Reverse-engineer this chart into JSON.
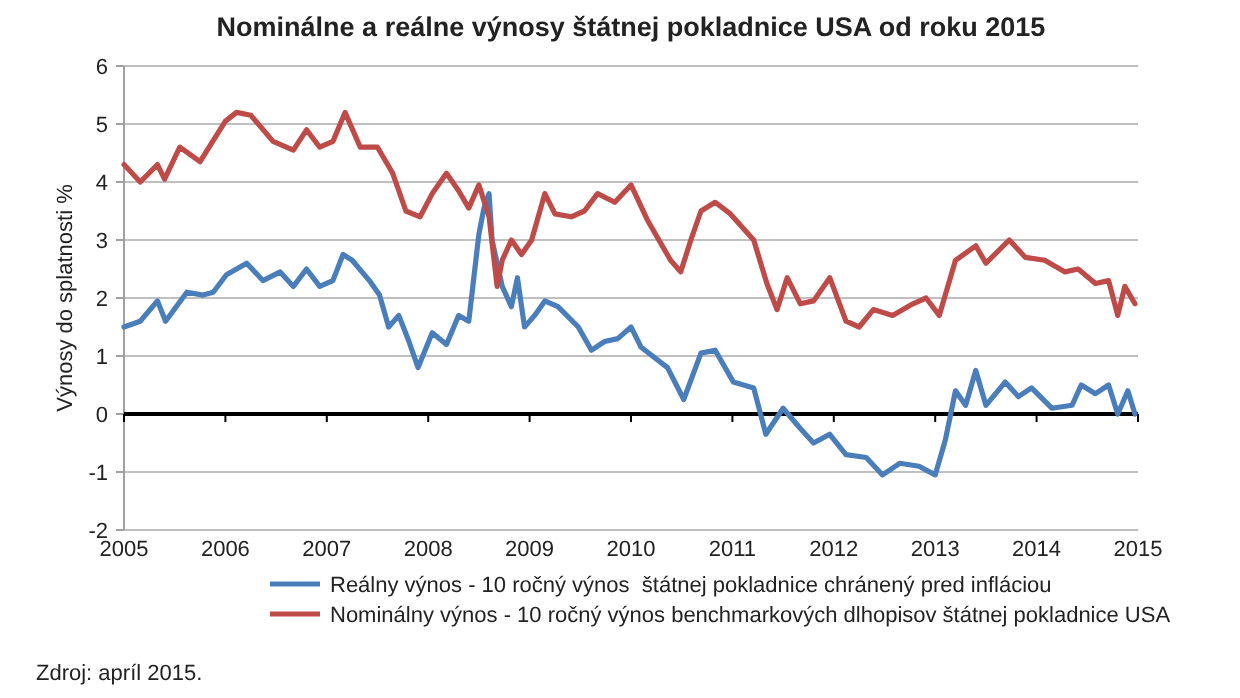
{
  "chart_data": {
    "type": "line",
    "title": "Nominálne a reálne výnosy štátnej pokladnice USA od roku 2015",
    "ylabel": "Výnosy do splatnosti %",
    "annotations": [
      "Zdroj: apríl 2015."
    ],
    "xlim": [
      2005,
      2015
    ],
    "xticks": [
      2005,
      2006,
      2007,
      2008,
      2009,
      2010,
      2011,
      2012,
      2013,
      2014,
      2015
    ],
    "ylim": [
      -2,
      6
    ],
    "yticks": [
      -2,
      -1,
      0,
      1,
      2,
      3,
      4,
      5,
      6
    ],
    "grid": "y",
    "legend": "bottom",
    "marker": "none",
    "line_style": "solid",
    "series": [
      {
        "name": "Reálny výnos - 10 ročný výnos  štátnej pokladnice chránený pred infláciou",
        "color": "#4a7ebb",
        "x": [
          2005.0,
          2005.16,
          2005.33,
          2005.41,
          2005.62,
          2005.78,
          2005.88,
          2006.01,
          2006.21,
          2006.37,
          2006.54,
          2006.67,
          2006.8,
          2006.93,
          2007.06,
          2007.16,
          2007.25,
          2007.42,
          2007.52,
          2007.61,
          2007.71,
          2007.81,
          2007.9,
          2008.04,
          2008.18,
          2008.3,
          2008.4,
          2008.44,
          2008.5,
          2008.55,
          2008.6,
          2008.63,
          2008.73,
          2008.82,
          2008.88,
          2008.95,
          2009.05,
          2009.15,
          2009.28,
          2009.48,
          2009.61,
          2009.74,
          2009.87,
          2010.0,
          2010.1,
          2010.36,
          2010.52,
          2010.69,
          2010.83,
          2011.01,
          2011.21,
          2011.33,
          2011.5,
          2011.67,
          2011.8,
          2011.96,
          2012.12,
          2012.32,
          2012.48,
          2012.65,
          2012.84,
          2013.0,
          2013.1,
          2013.2,
          2013.3,
          2013.4,
          2013.5,
          2013.69,
          2013.82,
          2013.95,
          2014.15,
          2014.35,
          2014.44,
          2014.58,
          2014.71,
          2014.8,
          2014.9,
          2014.97
        ],
        "values": [
          1.5,
          1.6,
          1.95,
          1.6,
          2.1,
          2.05,
          2.1,
          2.4,
          2.6,
          2.3,
          2.45,
          2.2,
          2.5,
          2.2,
          2.3,
          2.75,
          2.65,
          2.3,
          2.05,
          1.5,
          1.7,
          1.25,
          0.8,
          1.4,
          1.2,
          1.7,
          1.6,
          2.2,
          3.1,
          3.55,
          3.8,
          3.0,
          2.2,
          1.85,
          2.35,
          1.5,
          1.7,
          1.95,
          1.85,
          1.5,
          1.1,
          1.25,
          1.3,
          1.5,
          1.15,
          0.8,
          0.25,
          1.05,
          1.1,
          0.55,
          0.45,
          -0.35,
          0.1,
          -0.25,
          -0.5,
          -0.35,
          -0.7,
          -0.75,
          -1.05,
          -0.85,
          -0.9,
          -1.05,
          -0.45,
          0.4,
          0.15,
          0.75,
          0.15,
          0.55,
          0.3,
          0.45,
          0.1,
          0.15,
          0.5,
          0.35,
          0.5,
          0.0,
          0.4,
          0.0
        ]
      },
      {
        "name": "Nominálny výnos - 10 ročný výnos benchmarkových dlhopisov štátnej pokladnice USA",
        "color": "#be4b48",
        "x": [
          2005.0,
          2005.16,
          2005.33,
          2005.4,
          2005.55,
          2005.75,
          2006.0,
          2006.11,
          2006.25,
          2006.47,
          2006.67,
          2006.8,
          2006.93,
          2007.06,
          2007.18,
          2007.33,
          2007.5,
          2007.65,
          2007.78,
          2007.92,
          2008.04,
          2008.18,
          2008.3,
          2008.4,
          2008.5,
          2008.6,
          2008.68,
          2008.73,
          2008.82,
          2008.92,
          2009.02,
          2009.15,
          2009.25,
          2009.41,
          2009.54,
          2009.67,
          2009.84,
          2010.0,
          2010.16,
          2010.39,
          2010.49,
          2010.59,
          2010.69,
          2010.83,
          2010.98,
          2011.21,
          2011.34,
          2011.44,
          2011.54,
          2011.67,
          2011.8,
          2011.96,
          2012.12,
          2012.25,
          2012.39,
          2012.58,
          2012.78,
          2012.91,
          2013.04,
          2013.2,
          2013.4,
          2013.5,
          2013.73,
          2013.89,
          2014.08,
          2014.28,
          2014.41,
          2014.58,
          2014.71,
          2014.8,
          2014.87,
          2014.97
        ],
        "values": [
          4.3,
          4.0,
          4.3,
          4.05,
          4.6,
          4.35,
          5.05,
          5.2,
          5.15,
          4.7,
          4.55,
          4.9,
          4.6,
          4.7,
          5.2,
          4.6,
          4.6,
          4.15,
          3.5,
          3.4,
          3.8,
          4.15,
          3.85,
          3.55,
          3.95,
          3.4,
          2.2,
          2.65,
          3.0,
          2.75,
          3.0,
          3.8,
          3.45,
          3.4,
          3.5,
          3.8,
          3.65,
          3.95,
          3.35,
          2.65,
          2.45,
          3.0,
          3.5,
          3.65,
          3.45,
          3.0,
          2.25,
          1.8,
          2.35,
          1.9,
          1.95,
          2.35,
          1.6,
          1.5,
          1.8,
          1.7,
          1.9,
          2.0,
          1.7,
          2.65,
          2.9,
          2.6,
          3.0,
          2.7,
          2.65,
          2.45,
          2.5,
          2.25,
          2.3,
          1.7,
          2.2,
          1.9
        ]
      }
    ]
  }
}
